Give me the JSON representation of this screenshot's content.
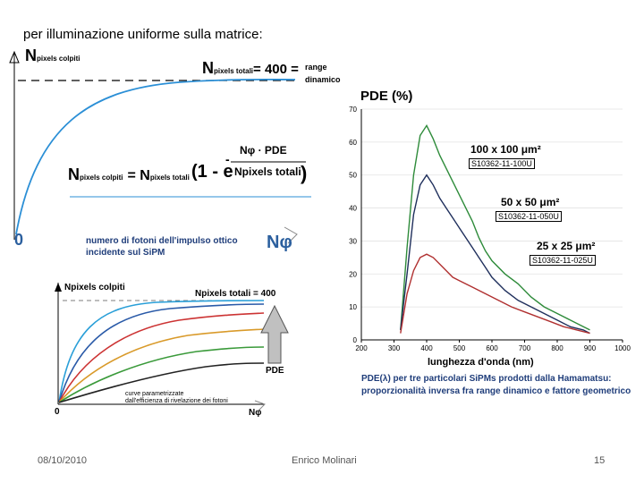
{
  "slide": {
    "heading": "per illuminazione uniforme sulla matrice:",
    "footer_date": "08/10/2010",
    "footer_author": "Enrico Molinari",
    "footer_page": "15"
  },
  "top_plot": {
    "y_symbol": "N",
    "y_sub": "pixels colpiti",
    "asymptote_symbol": "N",
    "asymptote_sub": "pixels totali",
    "asymptote_eq": "= 400 =",
    "range_label_1": "range",
    "range_label_2": "dinamico",
    "exponent_num": "Nφ · PDE",
    "exponent_den": "Npixels totali",
    "formula_lhs_sub": "pixels colpiti",
    "formula_rhs_sub": "pixels totali",
    "formula_eq": "= N",
    "formula_paren": "(1 - e",
    "formula_minus": "-",
    "formula_close": ")",
    "origin": "0",
    "x_symbol": "Nφ",
    "photon_note_1": "numero di fotoni dell'impulso ottico",
    "photon_note_2": "incidente sul SiPM"
  },
  "small_plot": {
    "y_label": "Npixels colpiti",
    "asymptote": "Npixels totali = 400",
    "arrow_label": "PDE",
    "caption_1": "curve parametrizzate",
    "caption_2": "dall'efficienza di rivelazione dei fotoni",
    "origin": "0",
    "x_label": "Nφ"
  },
  "pde_chart": {
    "caption_1": "PDE(λ) per tre particolari SiPMs prodotti dalla Hamamatsu:",
    "caption_2": "proporzionalità inversa fra range dinamico e fattore geometrico"
  },
  "chart_data": {
    "type": "line",
    "title": "PDE (%)",
    "xlabel": "lunghezza d'onda (nm)",
    "ylabel": "PDE (%)",
    "xlim": [
      200,
      1000
    ],
    "ylim": [
      0,
      70
    ],
    "x_ticks": [
      "200",
      "300",
      "400",
      "500",
      "600",
      "700",
      "800",
      "900",
      "1000"
    ],
    "y_ticks": [
      "0",
      "10",
      "20",
      "30",
      "40",
      "50",
      "60",
      "70"
    ],
    "series": [
      {
        "name": "100 x 100 μm²",
        "model": "S10362-11-100U",
        "color": "#2e8b3a",
        "x": [
          320,
          340,
          360,
          380,
          400,
          420,
          440,
          460,
          480,
          500,
          520,
          540,
          560,
          580,
          600,
          640,
          680,
          720,
          760,
          800,
          840,
          880,
          900
        ],
        "y": [
          3,
          28,
          50,
          62,
          65,
          61,
          56,
          52,
          48,
          44,
          40,
          36,
          31,
          27,
          24,
          20,
          17,
          13,
          10,
          8,
          6,
          4,
          3
        ]
      },
      {
        "name": "50 x 50 μm²",
        "model": "S10362-11-050U",
        "color": "#1f2f5c",
        "x": [
          320,
          340,
          360,
          380,
          400,
          420,
          440,
          460,
          480,
          500,
          520,
          540,
          560,
          580,
          600,
          640,
          680,
          720,
          760,
          800,
          840,
          880,
          900
        ],
        "y": [
          3,
          20,
          38,
          47,
          50,
          47,
          43,
          40,
          37,
          34,
          31,
          28,
          25,
          22,
          19,
          15,
          12,
          10,
          8,
          6,
          4,
          3,
          2
        ]
      },
      {
        "name": "25 x 25 μm²",
        "model": "S10362-11-025U",
        "color": "#b03030",
        "x": [
          320,
          340,
          360,
          380,
          400,
          420,
          440,
          460,
          480,
          500,
          540,
          580,
          620,
          660,
          700,
          740,
          780,
          820,
          860,
          900
        ],
        "y": [
          2,
          14,
          21,
          25,
          26,
          25,
          23,
          21,
          19,
          18,
          16,
          14,
          12,
          10,
          8.5,
          7,
          5.5,
          4,
          3,
          2
        ]
      }
    ]
  }
}
